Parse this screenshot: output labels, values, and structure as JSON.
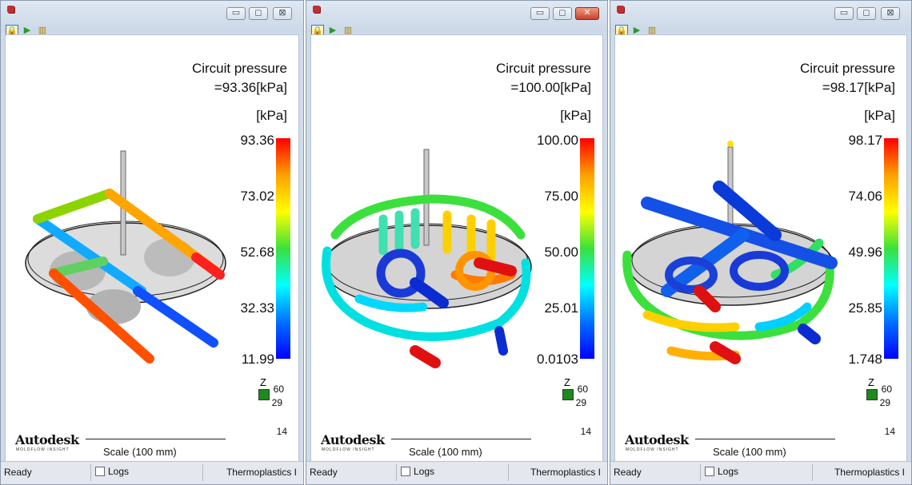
{
  "windows": [
    {
      "title": "Circuit pressure",
      "value": "=93.36[kPa]",
      "unit": "[kPa]",
      "ticks": [
        "93.36",
        "73.02",
        "52.68",
        "32.33",
        "11.99"
      ],
      "controls": [
        "▭",
        "◻",
        "⊠"
      ],
      "close_active": false
    },
    {
      "title": "Circuit pressure",
      "value": "=100.00[kPa]",
      "unit": "[kPa]",
      "ticks": [
        "100.00",
        "75.00",
        "50.00",
        "25.01",
        "0.0103"
      ],
      "controls": [
        "▭",
        "◻",
        "✕"
      ],
      "close_active": true
    },
    {
      "title": "Circuit pressure",
      "value": "=98.17[kPa]",
      "unit": "[kPa]",
      "ticks": [
        "98.17",
        "74.06",
        "49.96",
        "25.85",
        "1.748"
      ],
      "controls": [
        "▭",
        "◻",
        "⊠"
      ],
      "close_active": false
    }
  ],
  "logo": "Autodesk",
  "logo_sub": "MOLDFLOW INSIGHT",
  "scale_label": "Scale (100 mm)",
  "axes": {
    "z": "Z",
    "a": "60",
    "b": "29",
    "c": "14"
  },
  "status": {
    "ready": "Ready",
    "logs": "Logs",
    "module": "Thermoplastics I"
  },
  "colors": {
    "low": "#0000ff",
    "mid": "#3ce03c",
    "high": "#ff0000",
    "titlebar": "#cfdbe9"
  }
}
